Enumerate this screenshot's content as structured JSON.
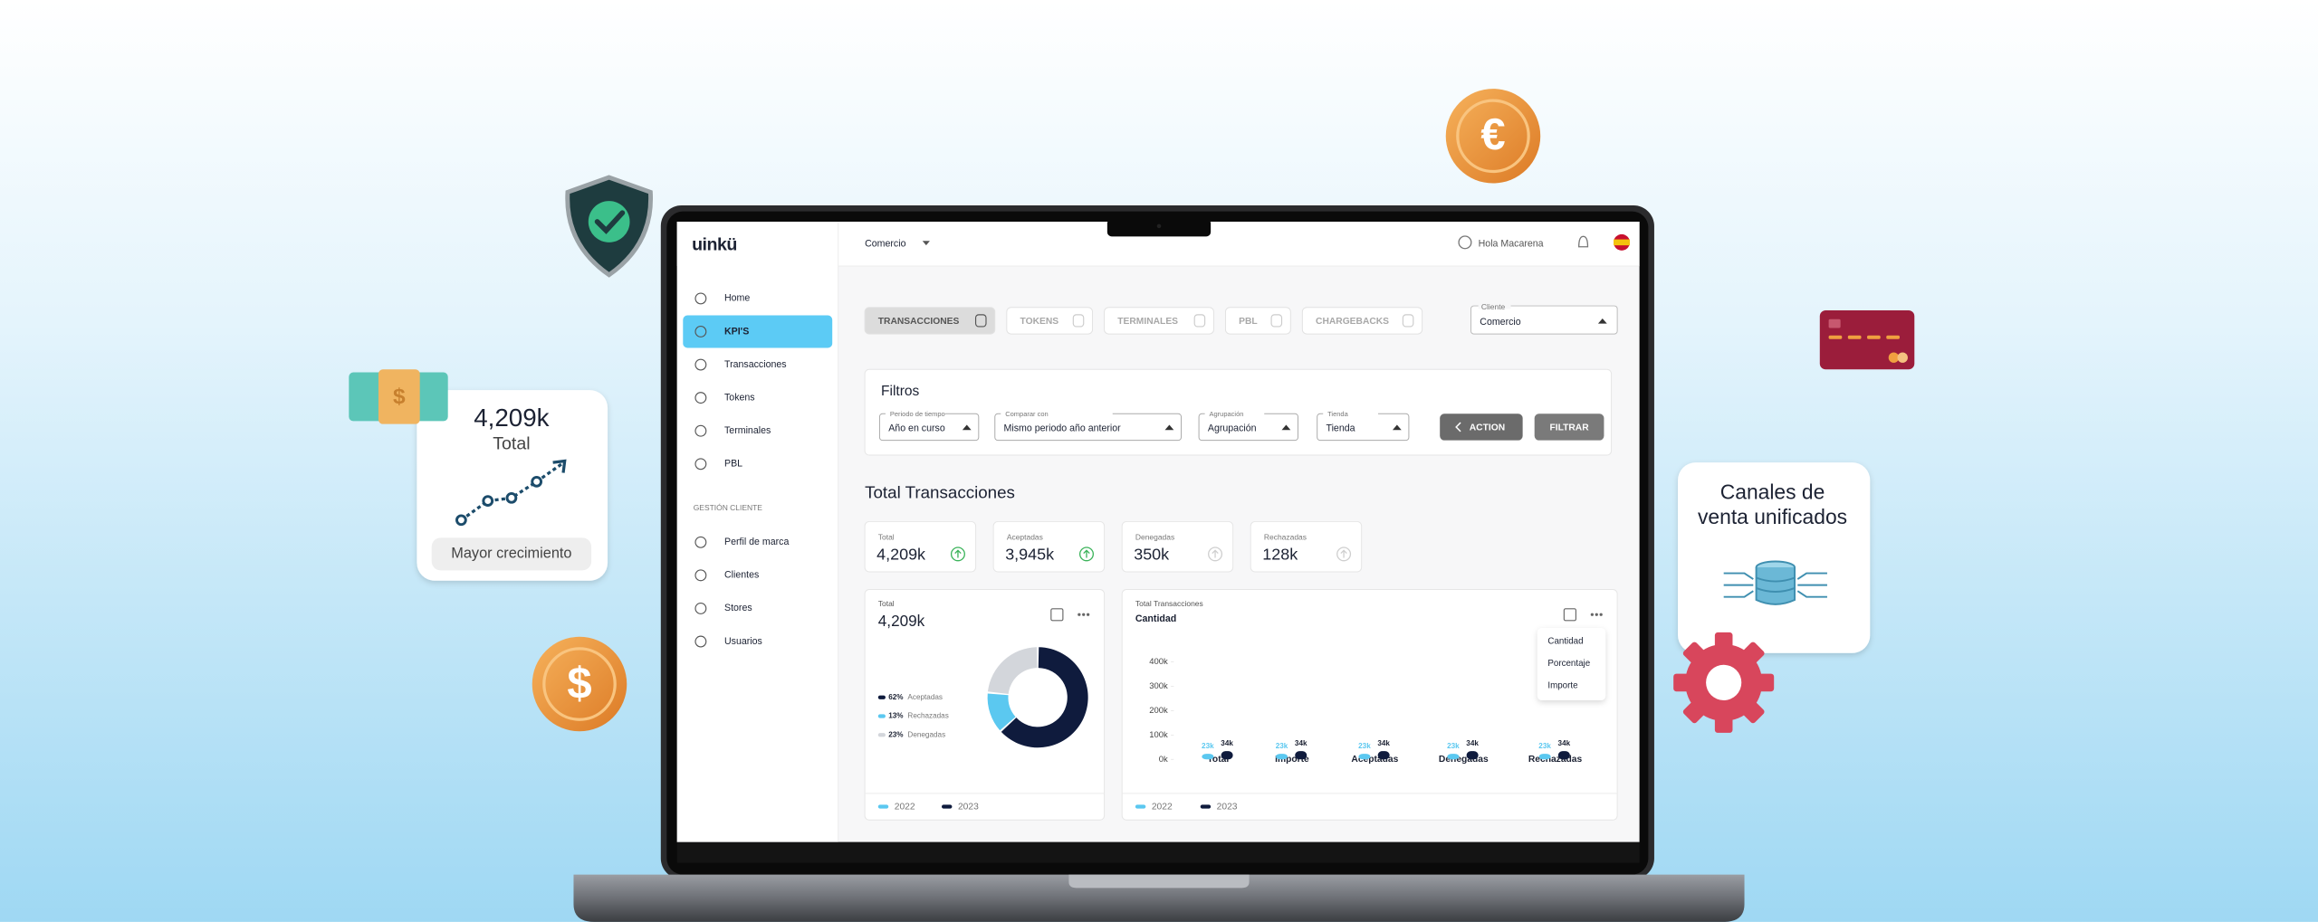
{
  "header": {
    "logo": "uinkü",
    "store": "Comercio",
    "greeting": "Hola Macarena"
  },
  "sidebar": {
    "items": [
      "Home",
      "KPI'S",
      "Transacciones",
      "Tokens",
      "Terminales",
      "PBL"
    ],
    "section": "GESTIÓN CLIENTE",
    "client_items": [
      "Perfil de marca",
      "Clientes",
      "Stores",
      "Usuarios"
    ]
  },
  "tabs": [
    "TRANSACCIONES",
    "TOKENS",
    "TERMINALES",
    "PBL",
    "CHARGEBACKS"
  ],
  "client_select": {
    "label": "Cliente",
    "value": "Comercio"
  },
  "filters": {
    "title": "Filtros",
    "fields": [
      {
        "label": "Periodo de tiempo",
        "value": "Año en curso"
      },
      {
        "label": "Comparar con",
        "value": "Mismo periodo año anterior"
      },
      {
        "label": "Agrupación",
        "value": "Agrupación"
      },
      {
        "label": "Tienda",
        "value": "Tienda"
      }
    ],
    "buttons": [
      "ACTION",
      "FILTRAR"
    ]
  },
  "section_title": "Total Transacciones",
  "kpis": [
    {
      "label": "Total",
      "value": "4,209k"
    },
    {
      "label": "Aceptadas",
      "value": "3,945k"
    },
    {
      "label": "Denegadas",
      "value": "350k"
    },
    {
      "label": "Rechazadas",
      "value": "128k"
    }
  ],
  "chart_data": [
    {
      "type": "pie",
      "title": "Total",
      "subtitle": "4,209k",
      "categories": [
        "Aceptadas",
        "Rechazadas",
        "Denegadas"
      ],
      "values": [
        62,
        13,
        23
      ],
      "value_labels": [
        "62%",
        "13%",
        "23%"
      ],
      "colors": [
        "#0f1b3d",
        "#5bc8f0",
        "#d3d6db"
      ],
      "donut": true,
      "legend": [
        {
          "name": "2022",
          "color": "#5bc8f0"
        },
        {
          "name": "2023",
          "color": "#0f1b3d"
        }
      ]
    },
    {
      "type": "bar",
      "title": "Total Transacciones",
      "subtitle": "Cantidad",
      "categories": [
        "Total",
        "Importe",
        "Aceptadas",
        "Denegadas",
        "Rechazadas"
      ],
      "series": [
        {
          "name": "2022",
          "color": "#5bc8f0",
          "values": [
            23000,
            23000,
            23000,
            23000,
            23000
          ],
          "value_labels": [
            "23k",
            "23k",
            "23k",
            "23k",
            "23k"
          ]
        },
        {
          "name": "2023",
          "color": "#0f1b3d",
          "values": [
            34000,
            34000,
            34000,
            34000,
            34000
          ],
          "value_labels": [
            "34k",
            "34k",
            "34k",
            "34k",
            "34k"
          ]
        }
      ],
      "ylim": [
        0,
        400000
      ],
      "yticks": [
        {
          "value": 0,
          "label": "0k"
        },
        {
          "value": 100000,
          "label": "100k"
        },
        {
          "value": 200000,
          "label": "200k"
        },
        {
          "value": 300000,
          "label": "300k"
        },
        {
          "value": 400000,
          "label": "400k"
        }
      ]
    }
  ],
  "dropdown": [
    "Cantidad",
    "Porcentaje",
    "Importe"
  ],
  "promo": {
    "growth_card": {
      "value": "4,209k",
      "label": "Total",
      "button": "Mayor crecimiento"
    },
    "channels_card": [
      "Canales de",
      "venta unificados"
    ],
    "euro": "€",
    "dollar": "$"
  }
}
